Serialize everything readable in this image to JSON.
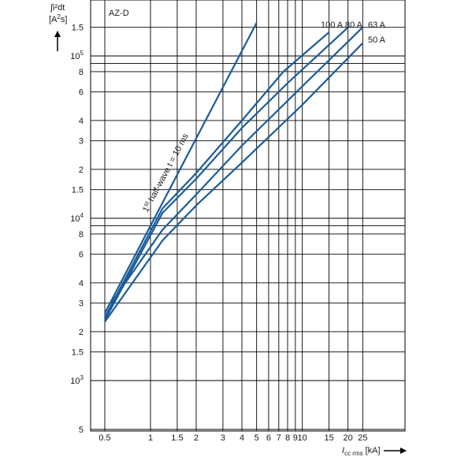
{
  "chart_data": {
    "type": "line",
    "subtitle": "AZ-D",
    "ylabel_line1": "∫i²dt",
    "ylabel_line2_prefix": "[A",
    "ylabel_line2_exp": "2",
    "ylabel_line2_suffix": "s]",
    "xlabel_main": "I",
    "xlabel_sub": "cc rms",
    "xlabel_unit": "[kA]",
    "x_scale": "log",
    "y_scale": "log",
    "xlim": [
      0.5,
      25
    ],
    "ylim": [
      500,
      150000
    ],
    "grid": true,
    "x_ticks": [
      {
        "v": 0.5,
        "t": "0.5"
      },
      {
        "v": 1,
        "t": "1"
      },
      {
        "v": 1.5,
        "t": "1.5"
      },
      {
        "v": 2,
        "t": "2"
      },
      {
        "v": 3,
        "t": "3"
      },
      {
        "v": 4,
        "t": "4"
      },
      {
        "v": 5,
        "t": "5"
      },
      {
        "v": 6,
        "t": "6"
      },
      {
        "v": 7,
        "t": "7"
      },
      {
        "v": 8,
        "t": "8"
      },
      {
        "v": 9,
        "t": "9"
      },
      {
        "v": 10,
        "t": "10"
      },
      {
        "v": 15,
        "t": "15"
      },
      {
        "v": 20,
        "t": "20"
      },
      {
        "v": 25,
        "t": "25"
      }
    ],
    "y_ticks": [
      {
        "v": 500,
        "t": "5"
      },
      {
        "v": 1000,
        "t": "10",
        "exp": "3"
      },
      {
        "v": 1500,
        "t": "1.5"
      },
      {
        "v": 2000,
        "t": "2"
      },
      {
        "v": 3000,
        "t": "3"
      },
      {
        "v": 4000,
        "t": "4"
      },
      {
        "v": 6000,
        "t": "6"
      },
      {
        "v": 8000,
        "t": "8"
      },
      {
        "v": 10000,
        "t": "10",
        "exp": "4"
      },
      {
        "v": 15000,
        "t": "1.5"
      },
      {
        "v": 20000,
        "t": "2"
      },
      {
        "v": 30000,
        "t": "3"
      },
      {
        "v": 40000,
        "t": "4"
      },
      {
        "v": 60000,
        "t": "6"
      },
      {
        "v": 80000,
        "t": "8"
      },
      {
        "v": 100000,
        "t": "10",
        "exp": "5"
      },
      {
        "v": 150000,
        "t": "1.5"
      }
    ],
    "extra_y_grid": [
      9000,
      90000
    ],
    "series": [
      {
        "name": "100 A",
        "points": [
          [
            0.5,
            2450
          ],
          [
            1.2,
            11500
          ],
          [
            2,
            19000
          ],
          [
            4,
            40000
          ],
          [
            7.5,
            80000
          ],
          [
            15,
            140000
          ]
        ]
      },
      {
        "name": "80 A",
        "points": [
          [
            0.5,
            2350
          ],
          [
            1.2,
            10800
          ],
          [
            2,
            17500
          ],
          [
            4,
            36000
          ],
          [
            8,
            68000
          ],
          [
            20,
            150000
          ]
        ]
      },
      {
        "name": "63 A",
        "points": [
          [
            0.55,
            3000
          ],
          [
            1.2,
            8500
          ],
          [
            2,
            14000
          ],
          [
            4,
            28000
          ],
          [
            10,
            65000
          ],
          [
            25,
            150000
          ]
        ]
      },
      {
        "name": "50 A",
        "points": [
          [
            0.5,
            2300
          ],
          [
            1.2,
            7300
          ],
          [
            2,
            12000
          ],
          [
            4,
            22000
          ],
          [
            10,
            50000
          ],
          [
            25,
            120000
          ]
        ]
      }
    ],
    "reference_line": {
      "label": "1st half-wave t = 10 ms",
      "label_main": "1",
      "label_sup": "st",
      "label_rest": " half-wave t = 10 ms",
      "points": [
        [
          0.5,
          2600
        ],
        [
          5,
          160000
        ]
      ]
    },
    "colors": {
      "line": "#1a5c9a",
      "grid": "#000000",
      "text": "#1a1a1a"
    }
  }
}
